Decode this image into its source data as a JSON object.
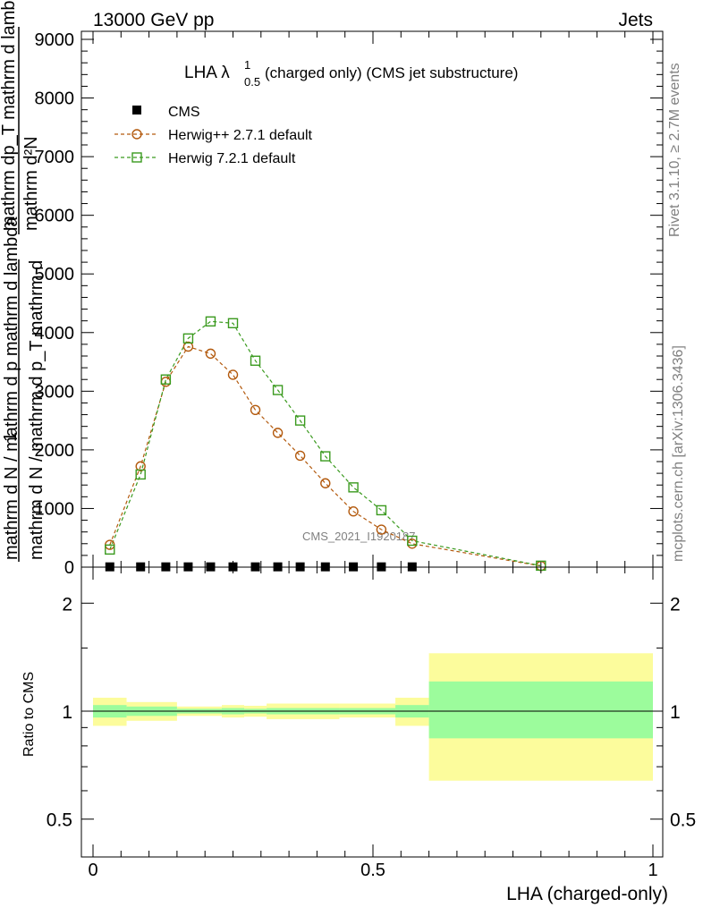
{
  "header": {
    "energy": "13000 GeV pp",
    "category": "Jets"
  },
  "title": {
    "main": "LHA λ",
    "sup": "1",
    "sub": "0.5",
    "rest": " (charged only) (CMS jet substructure)"
  },
  "side_text": {
    "rivet": "Rivet 3.1.10, ≥ 2.7M events",
    "mcplots": "mcplots.cern.ch [arXiv:1306.3436]"
  },
  "watermark": "CMS_2021_I1920187",
  "ylabel_top": {
    "numerator_one": "1",
    "line1": "mathrm d N / mathrm d p_T mathrm d",
    "line2": "mathrm d N / mathrm d p mathrm d lambda",
    "frac_top": "mathrm d²N",
    "frac_mid": "mathrm dp_T mathrm d lambda"
  },
  "ylabel_ratio": "Ratio to CMS",
  "xlabel": "LHA (charged-only)",
  "legend": [
    "CMS",
    "Herwig++ 2.7.1 default",
    "Herwig 7.2.1 default"
  ],
  "colors": {
    "herwigpp": "#b35a0e",
    "herwig7": "#3a9a1e",
    "band_inner": "#9cfc9c",
    "band_outer": "#fcfc9c"
  },
  "chart_data": [
    {
      "type": "line",
      "xlim": [
        0,
        1
      ],
      "ylim": [
        0,
        9000
      ],
      "yticks": [
        0,
        1000,
        2000,
        3000,
        4000,
        5000,
        6000,
        7000,
        8000,
        9000
      ],
      "ytick_labels": [
        "0",
        "1000",
        "2000",
        "3000",
        "4000",
        "5000",
        "6000",
        "7000",
        "8000",
        "9000"
      ],
      "grid": false,
      "legend_position": "top-left",
      "series": [
        {
          "name": "CMS",
          "marker": "square-filled",
          "x": [
            0.03,
            0.085,
            0.13,
            0.17,
            0.21,
            0.25,
            0.29,
            0.33,
            0.37,
            0.415,
            0.465,
            0.515,
            0.57
          ],
          "y": [
            5,
            5,
            5,
            5,
            5,
            5,
            5,
            5,
            5,
            5,
            5,
            5,
            5
          ]
        },
        {
          "name": "Herwig++ 2.7.1 default",
          "marker": "circle-open",
          "x": [
            0.03,
            0.085,
            0.13,
            0.17,
            0.21,
            0.25,
            0.29,
            0.33,
            0.37,
            0.415,
            0.465,
            0.515,
            0.57,
            0.8
          ],
          "y": [
            380,
            1720,
            3160,
            3760,
            3640,
            3280,
            2680,
            2290,
            1900,
            1430,
            950,
            640,
            400,
            20
          ]
        },
        {
          "name": "Herwig 7.2.1 default",
          "marker": "square-open",
          "x": [
            0.03,
            0.085,
            0.13,
            0.17,
            0.21,
            0.25,
            0.29,
            0.33,
            0.37,
            0.415,
            0.465,
            0.515,
            0.57,
            0.8
          ],
          "y": [
            300,
            1580,
            3200,
            3900,
            4190,
            4160,
            3520,
            3020,
            2500,
            1890,
            1360,
            970,
            450,
            25
          ]
        }
      ]
    },
    {
      "type": "area",
      "ylabel": "Ratio to CMS",
      "xlabel": "LHA (charged-only)",
      "xlim": [
        0,
        1
      ],
      "ylim": [
        0.4,
        2.3
      ],
      "log_y": true,
      "xticks": [
        0,
        0.5,
        1
      ],
      "xtick_labels": [
        "0",
        "0.5",
        "1"
      ],
      "yticks": [
        0.5,
        1,
        2
      ],
      "ytick_labels": [
        "0.5",
        "1",
        "2"
      ],
      "bins": [
        {
          "x0": 0.0,
          "x1": 0.06,
          "inner": [
            0.96,
            1.04
          ],
          "outer": [
            0.91,
            1.09
          ]
        },
        {
          "x0": 0.06,
          "x1": 0.15,
          "inner": [
            0.97,
            1.03
          ],
          "outer": [
            0.94,
            1.06
          ]
        },
        {
          "x0": 0.15,
          "x1": 0.23,
          "inner": [
            0.985,
            1.015
          ],
          "outer": [
            0.97,
            1.03
          ]
        },
        {
          "x0": 0.23,
          "x1": 0.27,
          "inner": [
            0.98,
            1.02
          ],
          "outer": [
            0.96,
            1.04
          ]
        },
        {
          "x0": 0.27,
          "x1": 0.31,
          "inner": [
            0.985,
            1.015
          ],
          "outer": [
            0.965,
            1.035
          ]
        },
        {
          "x0": 0.31,
          "x1": 0.44,
          "inner": [
            0.98,
            1.02
          ],
          "outer": [
            0.95,
            1.05
          ]
        },
        {
          "x0": 0.44,
          "x1": 0.54,
          "inner": [
            0.98,
            1.02
          ],
          "outer": [
            0.96,
            1.05
          ]
        },
        {
          "x0": 0.54,
          "x1": 0.6,
          "inner": [
            0.96,
            1.04
          ],
          "outer": [
            0.91,
            1.09
          ]
        },
        {
          "x0": 0.6,
          "x1": 1.0,
          "inner": [
            0.84,
            1.21
          ],
          "outer": [
            0.64,
            1.45
          ]
        }
      ],
      "series": []
    }
  ]
}
